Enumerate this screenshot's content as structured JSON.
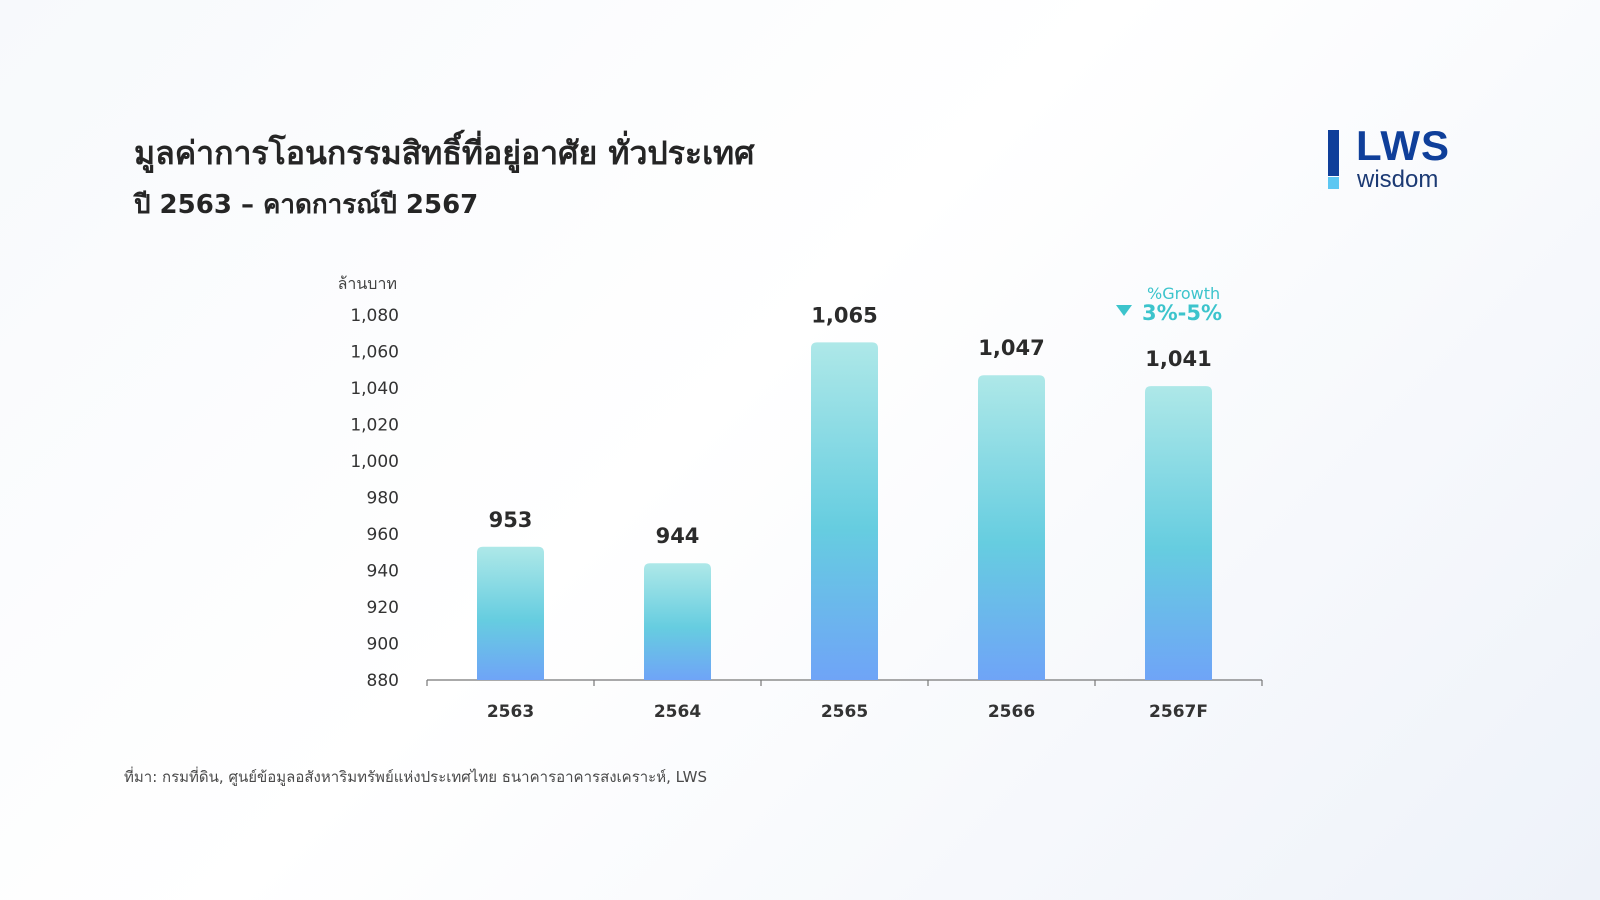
{
  "header": {
    "title": "มูลค่าการโอนกรรมสิทธิ์ที่อยู่อาศัย ทั่วประเทศ",
    "subtitle": "ปี 2563 – คาดการณ์ปี 2567"
  },
  "logo": {
    "brand": "LWS",
    "tagline": "wisdom",
    "colors": {
      "primary": "#0f3f9a",
      "accent": "#5cc7f2"
    }
  },
  "annotation": {
    "label": "%Growth",
    "value": "3%-5%",
    "icon": "down-triangle-icon",
    "color": "#3cc4cc"
  },
  "source_note": "ที่มา: กรมที่ดิน, ศูนย์ข้อมูลอสังหาริมทรัพย์แห่งประเทศไทย ธนาคารอาคารสงเคราะห์, LWS",
  "chart_data": {
    "type": "bar",
    "ylabel": "ล้านบาท",
    "xlabel": "",
    "categories": [
      "2563",
      "2564",
      "2565",
      "2566",
      "2567F"
    ],
    "values": [
      953,
      944,
      1065,
      1047,
      1041
    ],
    "value_labels": [
      "953",
      "944",
      "1,065",
      "1,047",
      "1,041"
    ],
    "ylim": [
      880,
      1080
    ],
    "yticks": [
      880,
      900,
      920,
      940,
      960,
      980,
      1000,
      1020,
      1040,
      1060,
      1080
    ],
    "ytick_labels": [
      "880",
      "900",
      "920",
      "940",
      "960",
      "980",
      "1,000",
      "1,020",
      "1,040",
      "1,060",
      "1,080"
    ],
    "grid": false,
    "legend": "none",
    "colors": {
      "bar_top": "#aee8e8",
      "bar_mid": "#66cde0",
      "bar_bottom": "#6fa4f7",
      "axis": "#777777"
    }
  }
}
